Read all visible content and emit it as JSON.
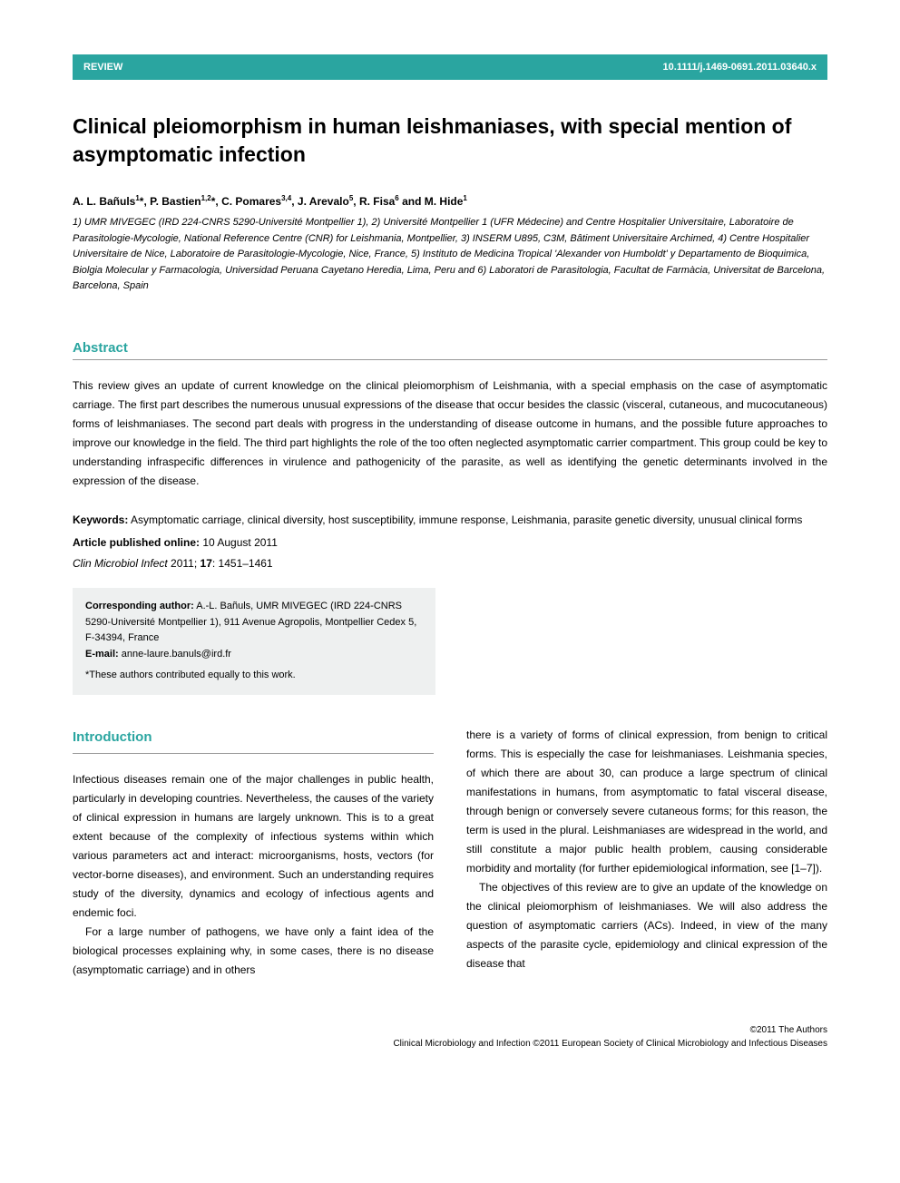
{
  "header": {
    "left": "REVIEW",
    "right": "10.1111/j.1469-0691.2011.03640.x",
    "bg_color": "#2aa5a0",
    "text_color": "#ffffff"
  },
  "title": "Clinical pleiomorphism in human leishmaniases, with special mention of asymptomatic infection",
  "authors_html": "A. L. Bañuls<sup>1</sup>*, P. Bastien<sup>1,2</sup>*, C. Pomares<sup>3,4</sup>, J. Arevalo<sup>5</sup>, R. Fisa<sup>6</sup> and M. Hide<sup>1</sup>",
  "affiliations": "1) UMR MIVEGEC (IRD 224-CNRS 5290-Université Montpellier 1), 2) Université Montpellier 1 (UFR Médecine) and Centre Hospitalier Universitaire, Laboratoire de Parasitologie-Mycologie, National Reference Centre (CNR) for Leishmania, Montpellier, 3) INSERM U895, C3M, Bâtiment Universitaire Archimed, 4) Centre Hospitalier Universitaire de Nice, Laboratoire de Parasitologie-Mycologie, Nice, France, 5) Instituto de Medicina Tropical 'Alexander von Humboldt' y Departamento de Bioquimica, Biolgia Molecular y Farmacologia, Universidad Peruana Cayetano Heredia, Lima, Peru and 6) Laboratori de Parasitologia, Facultat de Farmàcia, Universitat de Barcelona, Barcelona, Spain",
  "abstract": {
    "heading": "Abstract",
    "text": "This review gives an update of current knowledge on the clinical pleiomorphism of Leishmania, with a special emphasis on the case of asymptomatic carriage. The first part describes the numerous unusual expressions of the disease that occur besides the classic (visceral, cutaneous, and mucocutaneous) forms of leishmaniases. The second part deals with progress in the understanding of disease outcome in humans, and the possible future approaches to improve our knowledge in the field. The third part highlights the role of the too often neglected asymptomatic carrier compartment. This group could be key to understanding infraspecific differences in virulence and pathogenicity of the parasite, as well as identifying the genetic determinants involved in the expression of the disease."
  },
  "keywords": {
    "label": "Keywords:",
    "text": " Asymptomatic carriage, clinical diversity, host susceptibility, immune response, Leishmania, parasite genetic diversity, unusual clinical forms"
  },
  "published": {
    "label": "Article published online:",
    "text": " 10 August 2011"
  },
  "citation": {
    "journal": "Clin Microbiol Infect",
    "year": " 2011; ",
    "volume": "17",
    "pages": ": 1451–1461"
  },
  "corresponding": {
    "label": "Corresponding author:",
    "text": " A.-L. Bañuls, UMR MIVEGEC (IRD 224-CNRS 5290-Université Montpellier 1), 911 Avenue Agropolis, Montpellier Cedex 5, F-34394, France",
    "email_label": "E-mail:",
    "email": " anne-laure.banuls@ird.fr",
    "note": "*These authors contributed equally to this work."
  },
  "introduction": {
    "heading": "Introduction",
    "col1_p1": "Infectious diseases remain one of the major challenges in public health, particularly in developing countries. Nevertheless, the causes of the variety of clinical expression in humans are largely unknown. This is to a great extent because of the complexity of infectious systems within which various parameters act and interact: microorganisms, hosts, vectors (for vector-borne diseases), and environment. Such an understanding requires study of the diversity, dynamics and ecology of infectious agents and endemic foci.",
    "col1_p2": "For a large number of pathogens, we have only a faint idea of the biological processes explaining why, in some cases, there is no disease (asymptomatic carriage) and in others",
    "col2_p1": "there is a variety of forms of clinical expression, from benign to critical forms. This is especially the case for leishmaniases. Leishmania species, of which there are about 30, can produce a large spectrum of clinical manifestations in humans, from asymptomatic to fatal visceral disease, through benign or conversely severe cutaneous forms; for this reason, the term is used in the plural. Leishmaniases are widespread in the world, and still constitute a major public health problem, causing considerable morbidity and mortality (for further epidemiological information, see [1–7]).",
    "col2_p2": "The objectives of this review are to give an update of the knowledge on the clinical pleiomorphism of leishmaniases. We will also address the question of asymptomatic carriers (ACs). Indeed, in view of the many aspects of the parasite cycle, epidemiology and clinical expression of the disease that"
  },
  "footer": {
    "line1": "©2011 The Authors",
    "line2": "Clinical Microbiology and Infection ©2011 European Society of Clinical Microbiology and Infectious Diseases"
  },
  "colors": {
    "accent": "#2aa5a0",
    "box_bg": "#eef0f0",
    "rule": "#999999",
    "text": "#000000",
    "background": "#ffffff"
  },
  "typography": {
    "title_fontsize": 23,
    "body_fontsize": 12,
    "small_fontsize": 11,
    "footer_fontsize": 10,
    "heading_fontsize": 15
  }
}
